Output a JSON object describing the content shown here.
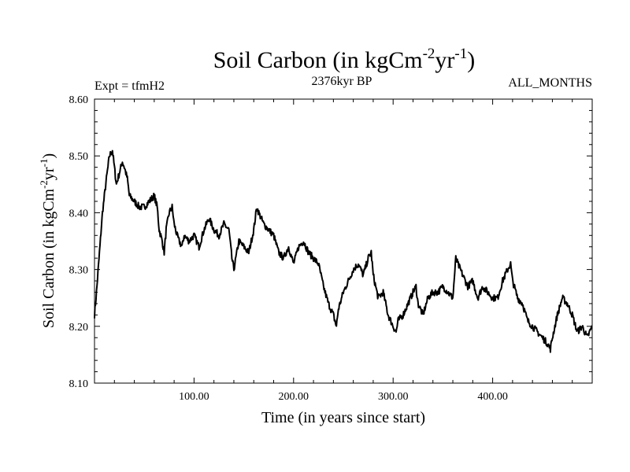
{
  "chart_data": {
    "type": "line",
    "title": "Soil Carbon (in kgCm",
    "title_sup1": "-2",
    "title_mid": "yr",
    "title_sup2": "-1",
    "title_end": ")",
    "subtitle_left": "Expt = tfmH2",
    "subtitle_center": "2376kyr BP",
    "subtitle_right": "ALL_MONTHS",
    "xlabel": "Time (in years since start)",
    "ylabel": "Soil Carbon (in kgCm",
    "ylabel_sup1": "-2",
    "ylabel_mid": "yr",
    "ylabel_sup2": "-1",
    "ylabel_end": ")",
    "xlim": [
      0,
      500
    ],
    "ylim": [
      8.1,
      8.6
    ],
    "x_ticks": [
      100,
      200,
      300,
      400
    ],
    "x_tick_labels": [
      "100.00",
      "200.00",
      "300.00",
      "400.00"
    ],
    "y_ticks": [
      8.1,
      8.2,
      8.3,
      8.4,
      8.5,
      8.6
    ],
    "y_tick_labels": [
      "8.10",
      "8.20",
      "8.30",
      "8.40",
      "8.50",
      "8.60"
    ],
    "series": [
      {
        "name": "Soil Carbon",
        "color": "#000000",
        "x": [
          0,
          2,
          5,
          8,
          12,
          15,
          18,
          20,
          22,
          25,
          28,
          30,
          33,
          35,
          40,
          45,
          50,
          55,
          60,
          63,
          65,
          68,
          70,
          72,
          75,
          78,
          80,
          83,
          85,
          88,
          90,
          95,
          100,
          105,
          110,
          115,
          120,
          125,
          130,
          135,
          138,
          140,
          145,
          150,
          155,
          160,
          163,
          165,
          170,
          175,
          180,
          185,
          190,
          195,
          200,
          205,
          210,
          215,
          220,
          225,
          230,
          235,
          240,
          243,
          245,
          250,
          255,
          260,
          265,
          270,
          275,
          278,
          280,
          285,
          290,
          295,
          300,
          303,
          305,
          310,
          315,
          320,
          323,
          325,
          330,
          335,
          340,
          345,
          350,
          355,
          360,
          363,
          365,
          370,
          375,
          380,
          385,
          390,
          395,
          400,
          405,
          410,
          415,
          418,
          420,
          425,
          430,
          435,
          440,
          445,
          450,
          455,
          458,
          460,
          465,
          470,
          475,
          480,
          485,
          490,
          495,
          500
        ],
        "values": [
          8.22,
          8.26,
          8.33,
          8.4,
          8.46,
          8.5,
          8.51,
          8.48,
          8.45,
          8.47,
          8.49,
          8.48,
          8.46,
          8.43,
          8.42,
          8.41,
          8.41,
          8.42,
          8.43,
          8.41,
          8.37,
          8.35,
          8.33,
          8.37,
          8.4,
          8.41,
          8.38,
          8.36,
          8.35,
          8.34,
          8.36,
          8.35,
          8.36,
          8.34,
          8.37,
          8.39,
          8.37,
          8.36,
          8.38,
          8.37,
          8.32,
          8.3,
          8.35,
          8.34,
          8.33,
          8.37,
          8.41,
          8.4,
          8.38,
          8.37,
          8.36,
          8.33,
          8.32,
          8.34,
          8.31,
          8.34,
          8.35,
          8.33,
          8.32,
          8.31,
          8.27,
          8.24,
          8.22,
          8.2,
          8.23,
          8.26,
          8.28,
          8.3,
          8.31,
          8.29,
          8.32,
          8.33,
          8.29,
          8.25,
          8.26,
          8.22,
          8.2,
          8.19,
          8.21,
          8.22,
          8.24,
          8.26,
          8.27,
          8.24,
          8.22,
          8.25,
          8.26,
          8.26,
          8.27,
          8.26,
          8.25,
          8.32,
          8.31,
          8.29,
          8.27,
          8.28,
          8.25,
          8.27,
          8.26,
          8.25,
          8.25,
          8.28,
          8.3,
          8.31,
          8.28,
          8.25,
          8.24,
          8.21,
          8.2,
          8.19,
          8.18,
          8.17,
          8.16,
          8.18,
          8.22,
          8.25,
          8.24,
          8.22,
          8.19,
          8.2,
          8.18,
          8.2
        ]
      }
    ]
  }
}
